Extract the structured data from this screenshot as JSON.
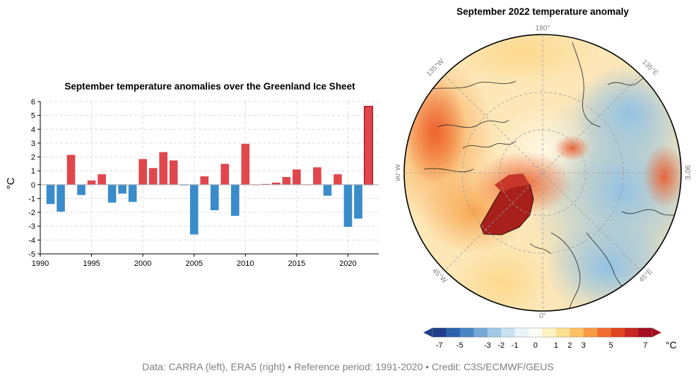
{
  "chart_data": [
    {
      "type": "bar",
      "title": "September temperature anomalies over the Greenland Ice Sheet",
      "ylabel": "°C",
      "xlabel": "",
      "ylim": [
        -5,
        6
      ],
      "xlim": [
        1990,
        2023
      ],
      "x_ticks": [
        "1990",
        "1995",
        "2000",
        "2005",
        "2010",
        "2015",
        "2020"
      ],
      "y_ticks": [
        "-5",
        "-4",
        "-3",
        "-2",
        "-1",
        "0",
        "1",
        "2",
        "3",
        "4",
        "5",
        "6"
      ],
      "grid": true,
      "x": [
        1991,
        1992,
        1993,
        1994,
        1995,
        1996,
        1997,
        1998,
        1999,
        2000,
        2001,
        2002,
        2003,
        2004,
        2005,
        2006,
        2007,
        2008,
        2009,
        2010,
        2011,
        2012,
        2013,
        2014,
        2015,
        2016,
        2017,
        2018,
        2019,
        2020,
        2021,
        2022
      ],
      "values": [
        -1.4,
        -1.95,
        2.15,
        -0.75,
        0.3,
        0.75,
        -1.3,
        -0.65,
        -1.25,
        1.85,
        1.2,
        2.35,
        1.75,
        -0.05,
        -3.6,
        0.6,
        -1.85,
        1.5,
        -2.25,
        2.95,
        0.0,
        0.05,
        0.15,
        0.55,
        1.1,
        0.0,
        1.25,
        -0.8,
        0.75,
        -3.05,
        -2.45,
        5.65
      ],
      "colors": {
        "positive": "#e0474c",
        "negative": "#3a8ccb",
        "highlight_edge": "#b2182b"
      },
      "highlight": 2022
    },
    {
      "type": "heatmap",
      "title": "September 2022 temperature anomaly",
      "projection": "north polar stereographic",
      "longitude_labels": {
        "top": "180°",
        "top_right": "135°E",
        "right": "90°E",
        "bottom_right": "45°E",
        "bottom": "0°",
        "bottom_left": "45°W",
        "left": "90°W",
        "top_left": "135°W"
      },
      "colorbar": {
        "unit": "°C",
        "tick_labels": [
          "-7",
          "-5",
          "-3",
          "-2",
          "-1",
          "0",
          "1",
          "2",
          "3",
          "5",
          "7"
        ],
        "colors": [
          "#1f3f8a",
          "#2d63ab",
          "#4a86c3",
          "#74a9d6",
          "#a0c9e6",
          "#c9e2f2",
          "#e9f4fa",
          "#fcfcf7",
          "#fdf2c2",
          "#fde08f",
          "#fcc164",
          "#f99b45",
          "#f26c2f",
          "#e2431f",
          "#c72422",
          "#a30f1f"
        ],
        "extend": "both"
      }
    }
  ],
  "credit": "Data: CARRA (left), ERA5 (right) • Reference period: 1991-2020 • Credit: C3S/ECMWF/GEUS"
}
